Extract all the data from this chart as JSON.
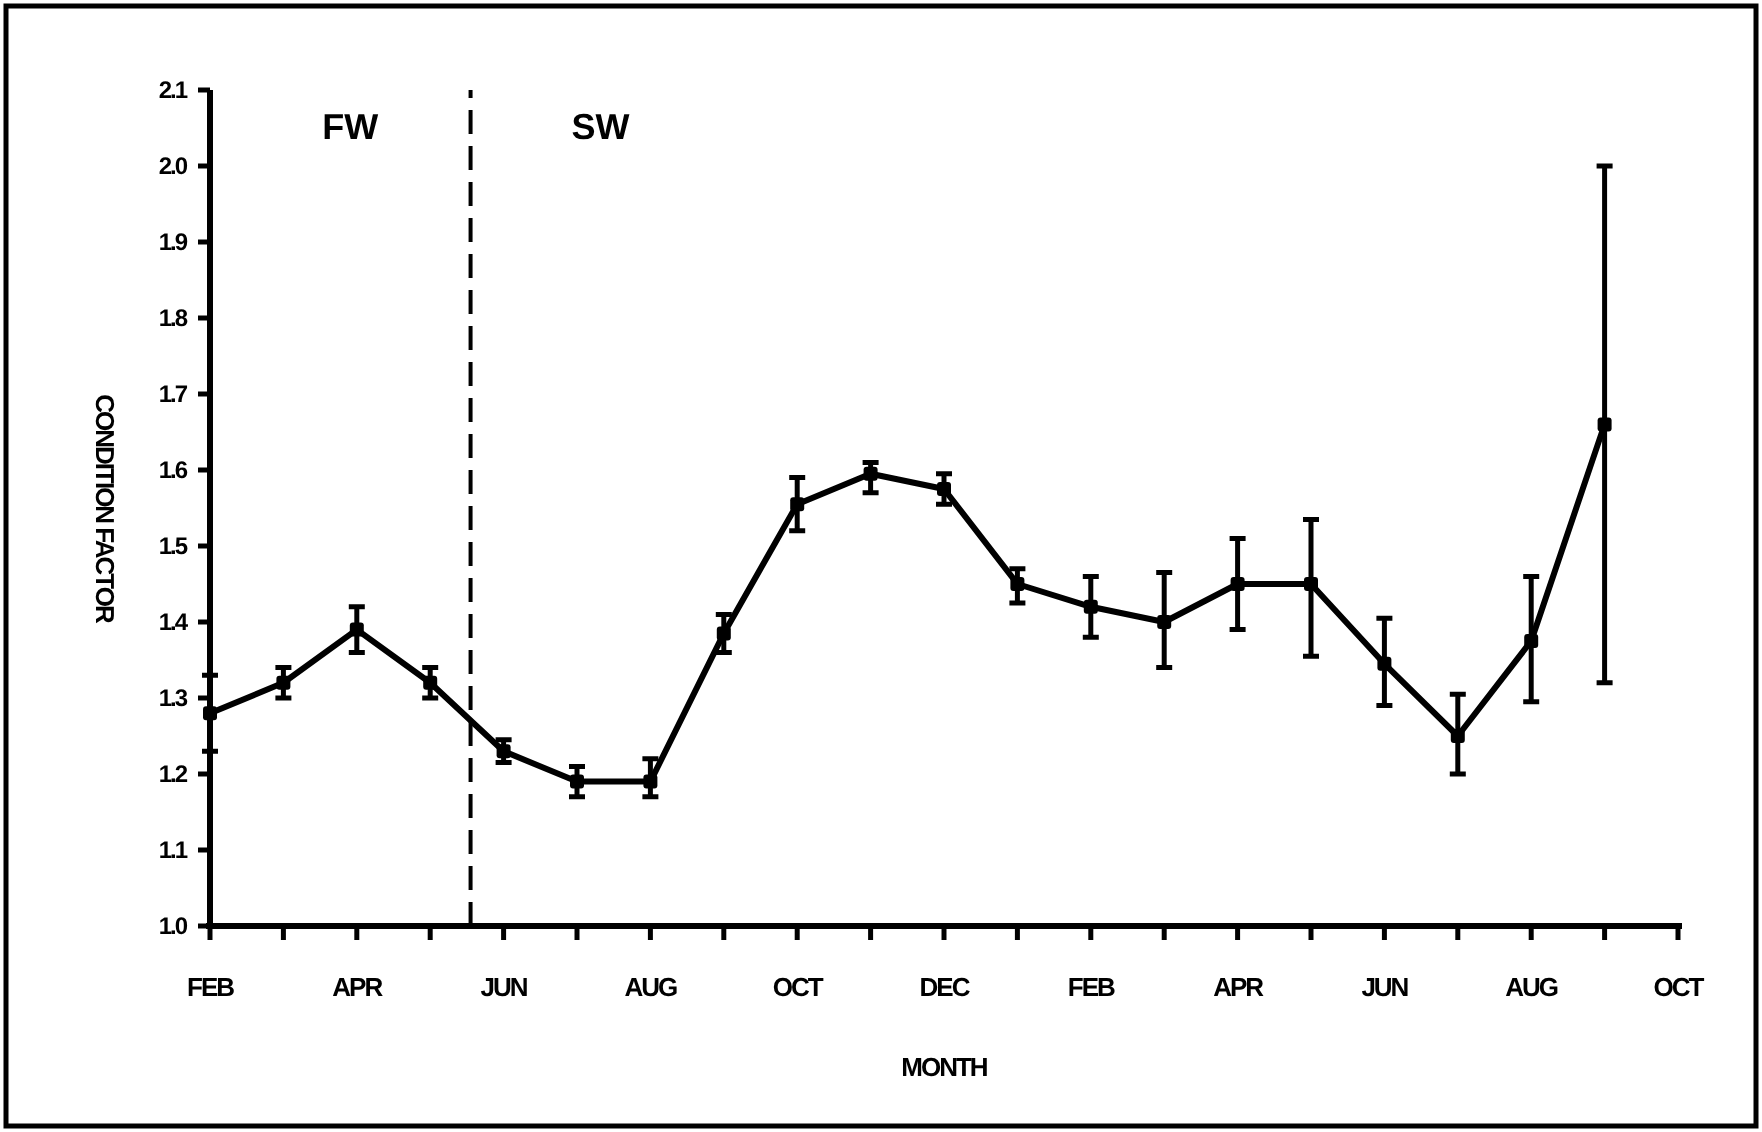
{
  "chart_data": {
    "type": "line",
    "xlabel": "MONTH",
    "ylabel": "CONDITION FACTOR",
    "categories": [
      "FEB",
      null,
      "APR",
      null,
      "JUN",
      null,
      "AUG",
      null,
      "OCT",
      null,
      "DEC",
      null,
      "FEB",
      null,
      "APR",
      null,
      "JUN",
      null,
      "AUG",
      null,
      "OCT"
    ],
    "series": [
      {
        "color": "#000000",
        "values": [
          1.28,
          1.32,
          1.39,
          1.32,
          1.23,
          1.19,
          1.19,
          1.385,
          1.555,
          1.595,
          1.575,
          1.45,
          1.42,
          1.4,
          1.45,
          1.45,
          1.345,
          1.25,
          1.375,
          1.66,
          null
        ],
        "errors": [
          [
            1.23,
            1.33
          ],
          [
            1.3,
            1.34
          ],
          [
            1.36,
            1.42
          ],
          [
            1.3,
            1.34
          ],
          [
            1.215,
            1.245
          ],
          [
            1.17,
            1.21
          ],
          [
            1.17,
            1.22
          ],
          [
            1.36,
            1.41
          ],
          [
            1.52,
            1.59
          ],
          [
            1.57,
            1.61
          ],
          [
            1.555,
            1.595
          ],
          [
            1.425,
            1.47
          ],
          [
            1.38,
            1.46
          ],
          [
            1.34,
            1.465
          ],
          [
            1.39,
            1.51
          ],
          [
            1.355,
            1.535
          ],
          [
            1.29,
            1.405
          ],
          [
            1.2,
            1.305
          ],
          [
            1.295,
            1.46
          ],
          [
            1.32,
            2.0
          ],
          null
        ]
      }
    ],
    "marker": "square",
    "line_style": "solid",
    "grid": false,
    "ylim": [
      1.0,
      2.1
    ],
    "yticks": [
      {
        "value": 1.0,
        "label": "1.0"
      },
      1.1,
      1.2,
      1.3,
      1.4,
      1.5,
      1.6,
      1.7,
      1.8,
      1.9,
      {
        "value": 2.0,
        "label": "2.0"
      },
      2.1
    ],
    "annotations": [
      "FW",
      "SW"
    ]
  }
}
